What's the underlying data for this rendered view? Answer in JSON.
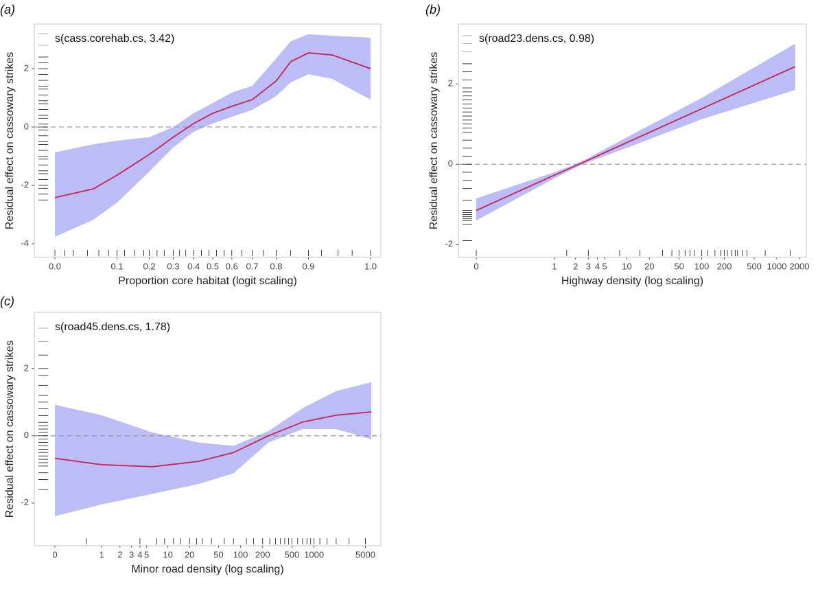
{
  "chart_data": [
    {
      "type": "line",
      "panel_label": "(a)",
      "annotation": "s(cass.corehab.cs, 3.42)",
      "xlabel": "Proportion core habitat (logit scaling)",
      "ylabel": "Residual effect on cassowary strikes",
      "xscale": "logit",
      "xshift": 0.05,
      "xlim": [
        0,
        1
      ],
      "ylim": [
        -4.47,
        3.53
      ],
      "xticks": [
        {
          "value": 0,
          "label": "0.0"
        },
        {
          "value": 0.1,
          "label": "0.1"
        },
        {
          "value": 0.2,
          "label": "0.2"
        },
        {
          "value": 0.3,
          "label": "0.3"
        },
        {
          "value": 0.4,
          "label": "0.4"
        },
        {
          "value": 0.5,
          "label": "0.5"
        },
        {
          "value": 0.6,
          "label": "0.6"
        },
        {
          "value": 0.7,
          "label": "0.7"
        },
        {
          "value": 0.8,
          "label": "0.8"
        },
        {
          "value": 0.9,
          "label": "0.9"
        },
        {
          "value": 1,
          "label": "1.0"
        }
      ],
      "yticks": [
        -4,
        -2,
        0,
        2
      ],
      "hline": 0,
      "color": "#c8234f",
      "band_color": "#bcbcf7",
      "x": [
        0,
        0.05,
        0.1,
        0.2,
        0.3,
        0.4,
        0.5,
        0.6,
        0.7,
        0.8,
        0.85,
        0.9,
        0.95,
        1
      ],
      "values": [
        -2.42,
        -2.12,
        -1.65,
        -0.94,
        -0.35,
        0.12,
        0.47,
        0.71,
        0.94,
        1.58,
        2.24,
        2.54,
        2.47,
        2.0
      ],
      "upper": [
        -0.87,
        -0.59,
        -0.47,
        -0.35,
        0,
        0.47,
        0.82,
        1.18,
        1.41,
        2.35,
        2.94,
        3.18,
        3.13,
        3.06
      ],
      "lower": [
        -3.76,
        -3.18,
        -2.59,
        -1.53,
        -0.7,
        -0.16,
        0.12,
        0.35,
        0.59,
        1.06,
        1.53,
        1.81,
        1.65,
        0.94
      ],
      "rug_x": [
        0,
        0.01,
        0.02,
        0.04,
        0.06,
        0.08,
        0.1,
        0.12,
        0.15,
        0.18,
        0.2,
        0.23,
        0.26,
        0.3,
        0.33,
        0.36,
        0.4,
        0.44,
        0.48,
        0.52,
        0.56,
        0.6,
        0.65,
        0.7,
        0.75,
        0.8,
        0.85,
        0.9,
        0.93,
        0.96,
        0.98,
        1
      ],
      "rug_y": [
        -2.5,
        -2.3,
        -2.1,
        -2.0,
        -1.8,
        -1.6,
        -1.5,
        -1.3,
        -1.1,
        -1.0,
        -0.8,
        -0.6,
        -0.5,
        -0.3,
        -0.1,
        0,
        0.1,
        0.3,
        0.4,
        0.6,
        0.8,
        0.9,
        1.1,
        1.3,
        1.4,
        1.6,
        1.8,
        2.0,
        2.2,
        2.4,
        2.8,
        3.2
      ]
    },
    {
      "type": "line",
      "panel_label": "(b)",
      "annotation": "s(road23.dens.cs, 0.98)",
      "xlabel": "Highway density (log scaling)",
      "ylabel": "Residual effect on cassowary strikes",
      "xscale": "log",
      "xshift": 0.1,
      "xlim": [
        0,
        2000
      ],
      "ylim": [
        -2.32,
        3.49
      ],
      "xticks": [
        0,
        1,
        2,
        3,
        4,
        5,
        10,
        20,
        50,
        100,
        200,
        500,
        1000,
        2000
      ],
      "yticks": [
        -2,
        0,
        2
      ],
      "hline": 0,
      "color": "#c8234f",
      "band_color": "#bcbcf7",
      "x": [
        0,
        1,
        2.5,
        10,
        100,
        1750
      ],
      "values": [
        -1.15,
        -0.27,
        0.04,
        0.54,
        1.38,
        2.43
      ],
      "upper": [
        -0.85,
        -0.2,
        0.08,
        0.67,
        1.65,
        3.0
      ],
      "lower": [
        -1.4,
        -0.35,
        0.0,
        0.41,
        1.12,
        1.85
      ],
      "rug_x": [
        0,
        1.5,
        3,
        8,
        15,
        30,
        40,
        50,
        60,
        70,
        80,
        100,
        120,
        150,
        180,
        200,
        220,
        250,
        280,
        300,
        350,
        400,
        700,
        1500
      ],
      "rug_y": [
        3.2,
        3.0,
        2.8,
        2.5,
        2.3,
        2.1,
        1.9,
        1.8,
        1.7,
        1.6,
        1.5,
        1.4,
        1.3,
        1.2,
        1.1,
        1.0,
        0.9,
        0.8,
        0.6,
        0.4,
        0.2,
        0,
        -0.2,
        -0.4,
        -0.6,
        -0.9,
        -1.15,
        -1.2,
        -1.25,
        -1.3,
        -1.35,
        -1.4,
        -1.5,
        -1.9
      ]
    },
    {
      "type": "line",
      "panel_label": "(c)",
      "annotation": "s(road45.dens.cs, 1.78)",
      "xlabel": "Minor road density (log scaling)",
      "ylabel": "Residual effect on cassowary strikes",
      "xscale": "log",
      "xshift": 0.3,
      "xlim": [
        0,
        6000
      ],
      "ylim": [
        -3.27,
        3.67
      ],
      "xticks": [
        0,
        1,
        2,
        3,
        4,
        5,
        10,
        20,
        50,
        100,
        200,
        500,
        1000,
        5000
      ],
      "yticks": [
        -2,
        0,
        2
      ],
      "hline": 0,
      "color": "#c8234f",
      "band_color": "#bcbcf7",
      "x": [
        0,
        1,
        6,
        27,
        80,
        240,
        700,
        2000,
        6000
      ],
      "values": [
        -0.67,
        -0.86,
        -0.92,
        -0.76,
        -0.5,
        0,
        0.41,
        0.61,
        0.71
      ],
      "upper": [
        0.92,
        0.61,
        0.1,
        -0.2,
        -0.3,
        0.14,
        0.82,
        1.33,
        1.59
      ],
      "lower": [
        -2.39,
        -2.04,
        -1.73,
        -1.43,
        -1.12,
        -0.2,
        0.2,
        0.2,
        -0.1
      ],
      "rug_x": [
        0.5,
        4,
        7,
        9,
        12,
        15,
        20,
        25,
        30,
        40,
        60,
        80,
        120,
        150,
        200,
        250,
        300,
        350,
        400,
        450,
        500,
        600,
        700,
        800,
        900,
        1000,
        1200,
        1500,
        2000,
        3000,
        5000
      ],
      "rug_y": [
        3.2,
        2.8,
        2.4,
        2.0,
        1.8,
        1.5,
        1.2,
        1.0,
        0.8,
        0.6,
        0.4,
        0.3,
        0.2,
        0.1,
        0,
        -0.1,
        -0.2,
        -0.3,
        -0.4,
        -0.5,
        -0.6,
        -0.7,
        -0.8,
        -0.9,
        -1.1,
        -1.3,
        -1.6
      ]
    }
  ]
}
